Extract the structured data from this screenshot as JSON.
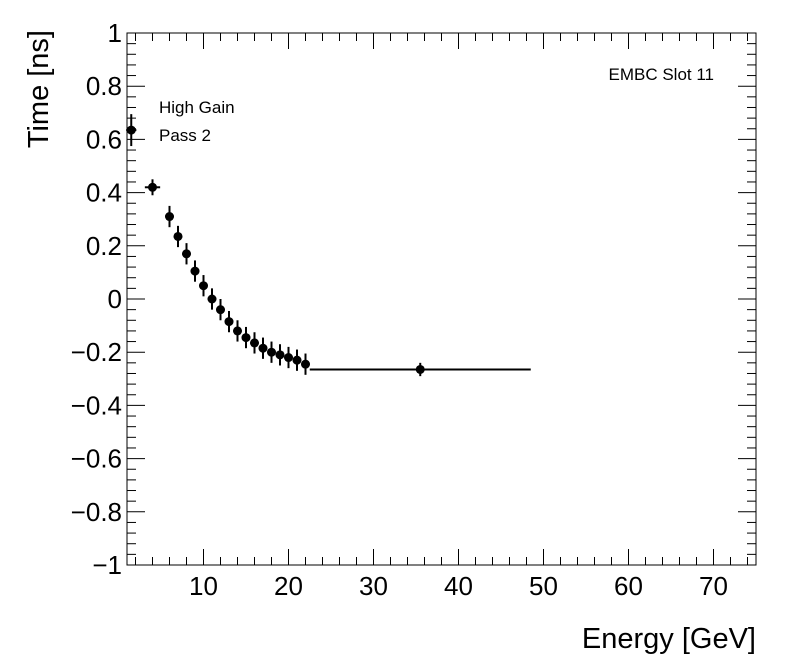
{
  "chart_data": {
    "type": "scatter",
    "title": "",
    "xlabel": "Energy [GeV]",
    "ylabel": "Time [ns]",
    "xlim": [
      1,
      75
    ],
    "ylim": [
      -1,
      1
    ],
    "grid": false,
    "x_major_ticks": [
      10,
      20,
      30,
      40,
      50,
      60,
      70
    ],
    "x_tick_labels": [
      "10",
      "20",
      "30",
      "40",
      "50",
      "60",
      "70"
    ],
    "y_major_ticks": [
      -1,
      -0.8,
      -0.6,
      -0.4,
      -0.2,
      0,
      0.2,
      0.4,
      0.6,
      0.8,
      1
    ],
    "y_tick_labels": [
      "−1",
      "−0.8",
      "−0.6",
      "−0.4",
      "−0.2",
      "0",
      "0.2",
      "0.4",
      "0.6",
      "0.8",
      "1"
    ],
    "annotations": {
      "slot_label": "EMBC Slot 11",
      "legend_line1": "High Gain",
      "legend_line2": "Pass 2"
    },
    "series": [
      {
        "name": "High Gain Pass 2",
        "color": "#000000",
        "points": [
          {
            "x": 1.5,
            "y": 0.635,
            "xerr": 0.6,
            "yerr": 0.06
          },
          {
            "x": 4.0,
            "y": 0.42,
            "xerr": 0.9,
            "yerr": 0.03
          },
          {
            "x": 6.0,
            "y": 0.31,
            "xerr": 0.5,
            "yerr": 0.04
          },
          {
            "x": 7.0,
            "y": 0.235,
            "xerr": 0.5,
            "yerr": 0.04
          },
          {
            "x": 8.0,
            "y": 0.17,
            "xerr": 0.5,
            "yerr": 0.04
          },
          {
            "x": 9.0,
            "y": 0.105,
            "xerr": 0.5,
            "yerr": 0.04
          },
          {
            "x": 10.0,
            "y": 0.05,
            "xerr": 0.5,
            "yerr": 0.04
          },
          {
            "x": 11.0,
            "y": 0.0,
            "xerr": 0.5,
            "yerr": 0.04
          },
          {
            "x": 12.0,
            "y": -0.04,
            "xerr": 0.5,
            "yerr": 0.04
          },
          {
            "x": 13.0,
            "y": -0.085,
            "xerr": 0.5,
            "yerr": 0.04
          },
          {
            "x": 14.0,
            "y": -0.12,
            "xerr": 0.5,
            "yerr": 0.04
          },
          {
            "x": 15.0,
            "y": -0.145,
            "xerr": 0.5,
            "yerr": 0.04
          },
          {
            "x": 16.0,
            "y": -0.165,
            "xerr": 0.5,
            "yerr": 0.04
          },
          {
            "x": 17.0,
            "y": -0.185,
            "xerr": 0.5,
            "yerr": 0.04
          },
          {
            "x": 18.0,
            "y": -0.2,
            "xerr": 0.5,
            "yerr": 0.04
          },
          {
            "x": 19.0,
            "y": -0.21,
            "xerr": 0.5,
            "yerr": 0.04
          },
          {
            "x": 20.0,
            "y": -0.22,
            "xerr": 0.5,
            "yerr": 0.04
          },
          {
            "x": 21.0,
            "y": -0.23,
            "xerr": 0.5,
            "yerr": 0.04
          },
          {
            "x": 22.0,
            "y": -0.245,
            "xerr": 0.5,
            "yerr": 0.04
          },
          {
            "x": 35.5,
            "y": -0.265,
            "xerr": 13.0,
            "yerr": 0.025
          }
        ]
      }
    ]
  }
}
